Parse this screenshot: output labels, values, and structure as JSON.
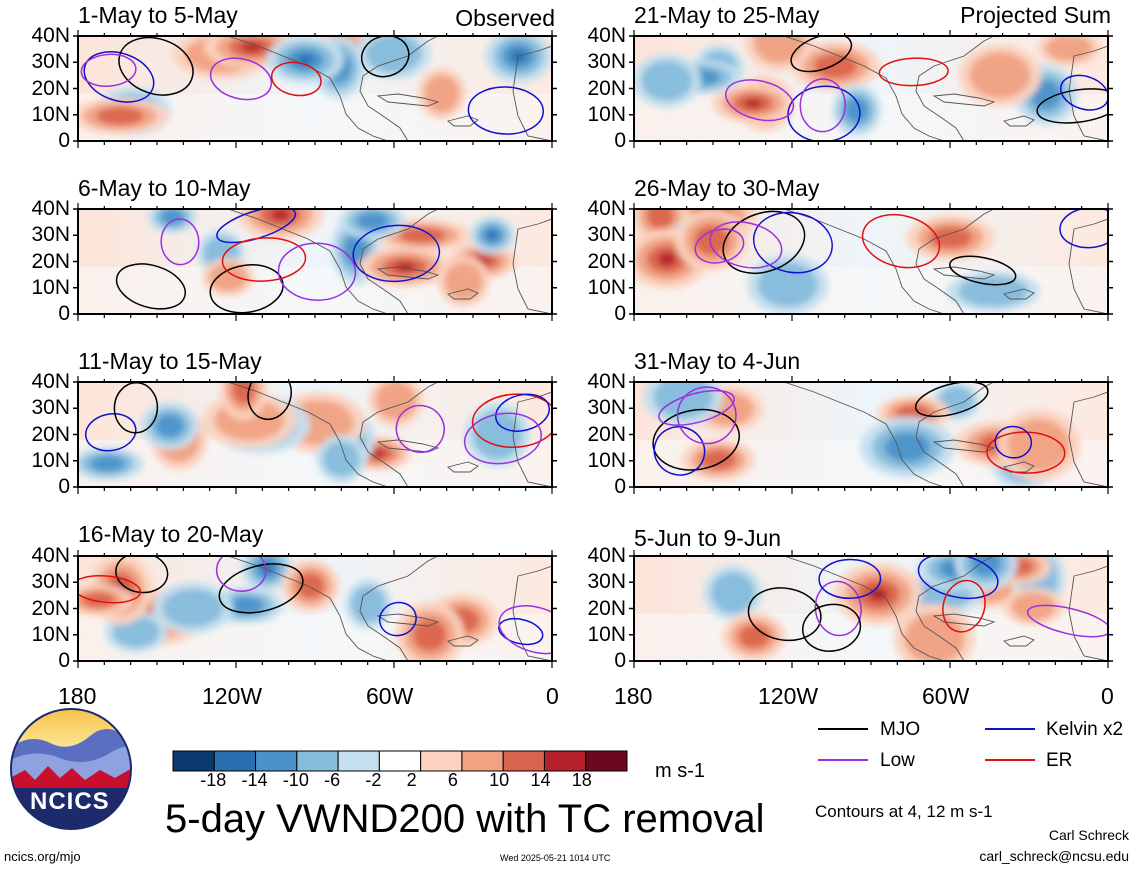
{
  "figure": {
    "title": "5-day VWND200 with TC removal",
    "website": "ncics.org/mjo",
    "timestamp": "Wed 2025-05-21 1014 UTC",
    "author": "Carl Schreck",
    "email": "carl_schreck@ncsu.edu",
    "contour_note": "Contours at 4, 12 m s-1",
    "logo_text": "NCICS"
  },
  "columns": [
    {
      "header": "Observed",
      "panels": [
        "1-May to 5-May",
        "6-May to 10-May",
        "11-May to 15-May",
        "16-May to 20-May"
      ]
    },
    {
      "header": "Projected Sum",
      "panels": [
        "21-May to 25-May",
        "26-May to 30-May",
        "31-May to 4-Jun",
        "5-Jun to 9-Jun"
      ]
    }
  ],
  "axes": {
    "y_ticks": [
      "40N",
      "30N",
      "20N",
      "10N",
      "0"
    ],
    "x_ticks": [
      "180",
      "120W",
      "60W",
      "0"
    ]
  },
  "colorbar": {
    "unit": "m s-1",
    "tick_labels": [
      "-18",
      "-14",
      "-10",
      "-6",
      "-2",
      "2",
      "6",
      "10",
      "14",
      "18"
    ],
    "colors": [
      "#0b3b6e",
      "#2a6fb0",
      "#4a92c8",
      "#86bcdc",
      "#c4dfee",
      "#ffffff",
      "#fbd3c0",
      "#f0a283",
      "#d9644d",
      "#b42129",
      "#6b0a1e"
    ]
  },
  "legend": [
    {
      "label": "MJO",
      "color": "#000000"
    },
    {
      "label": "Kelvin x2",
      "color": "#1010d0"
    },
    {
      "label": "Low",
      "color": "#9b30e0"
    },
    {
      "label": "ER",
      "color": "#e01010"
    }
  ]
}
